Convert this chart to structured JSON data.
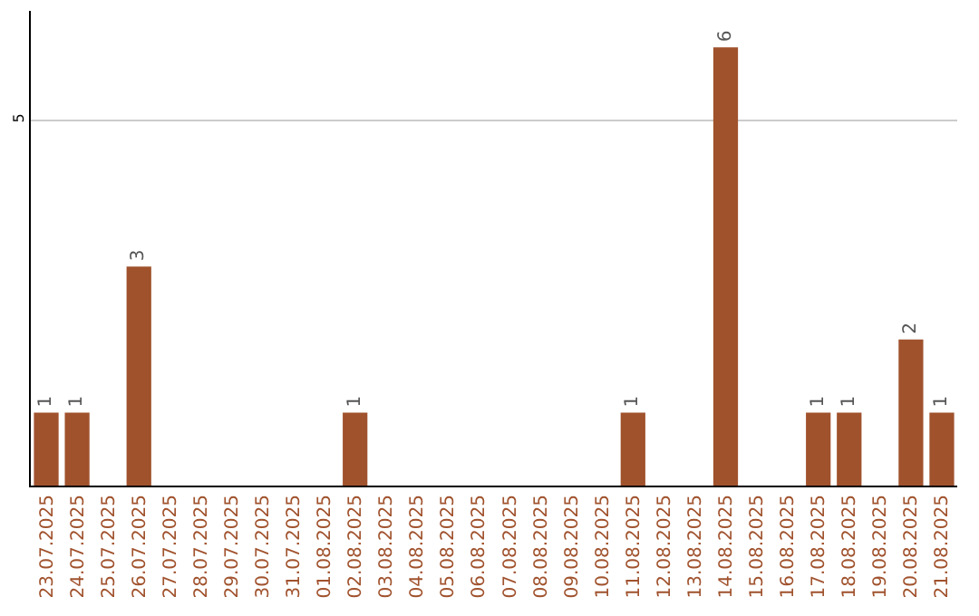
{
  "chart_data": {
    "type": "bar",
    "categories": [
      "23.07.2025",
      "24.07.2025",
      "25.07.2025",
      "26.07.2025",
      "27.07.2025",
      "28.07.2025",
      "29.07.2025",
      "30.07.2025",
      "31.07.2025",
      "01.08.2025",
      "02.08.2025",
      "03.08.2025",
      "04.08.2025",
      "05.08.2025",
      "06.08.2025",
      "07.08.2025",
      "08.08.2025",
      "09.08.2025",
      "10.08.2025",
      "11.08.2025",
      "12.08.2025",
      "13.08.2025",
      "14.08.2025",
      "15.08.2025",
      "16.08.2025",
      "17.08.2025",
      "18.08.2025",
      "19.08.2025",
      "20.08.2025",
      "21.08.2025"
    ],
    "values": [
      1,
      1,
      0,
      3,
      0,
      0,
      0,
      0,
      0,
      0,
      1,
      0,
      0,
      0,
      0,
      0,
      0,
      0,
      0,
      1,
      0,
      0,
      6,
      0,
      0,
      1,
      1,
      0,
      2,
      1
    ],
    "value_labels": [
      "1",
      "1",
      null,
      "3",
      null,
      null,
      null,
      null,
      null,
      null,
      "1",
      null,
      null,
      null,
      null,
      null,
      null,
      null,
      null,
      "1",
      null,
      null,
      "6",
      null,
      null,
      "1",
      "1",
      null,
      "2",
      "1"
    ],
    "color": "#a0522d",
    "ylim": [
      0,
      6.5
    ],
    "yticks": [
      5
    ],
    "grid": "y",
    "legend": false
  }
}
